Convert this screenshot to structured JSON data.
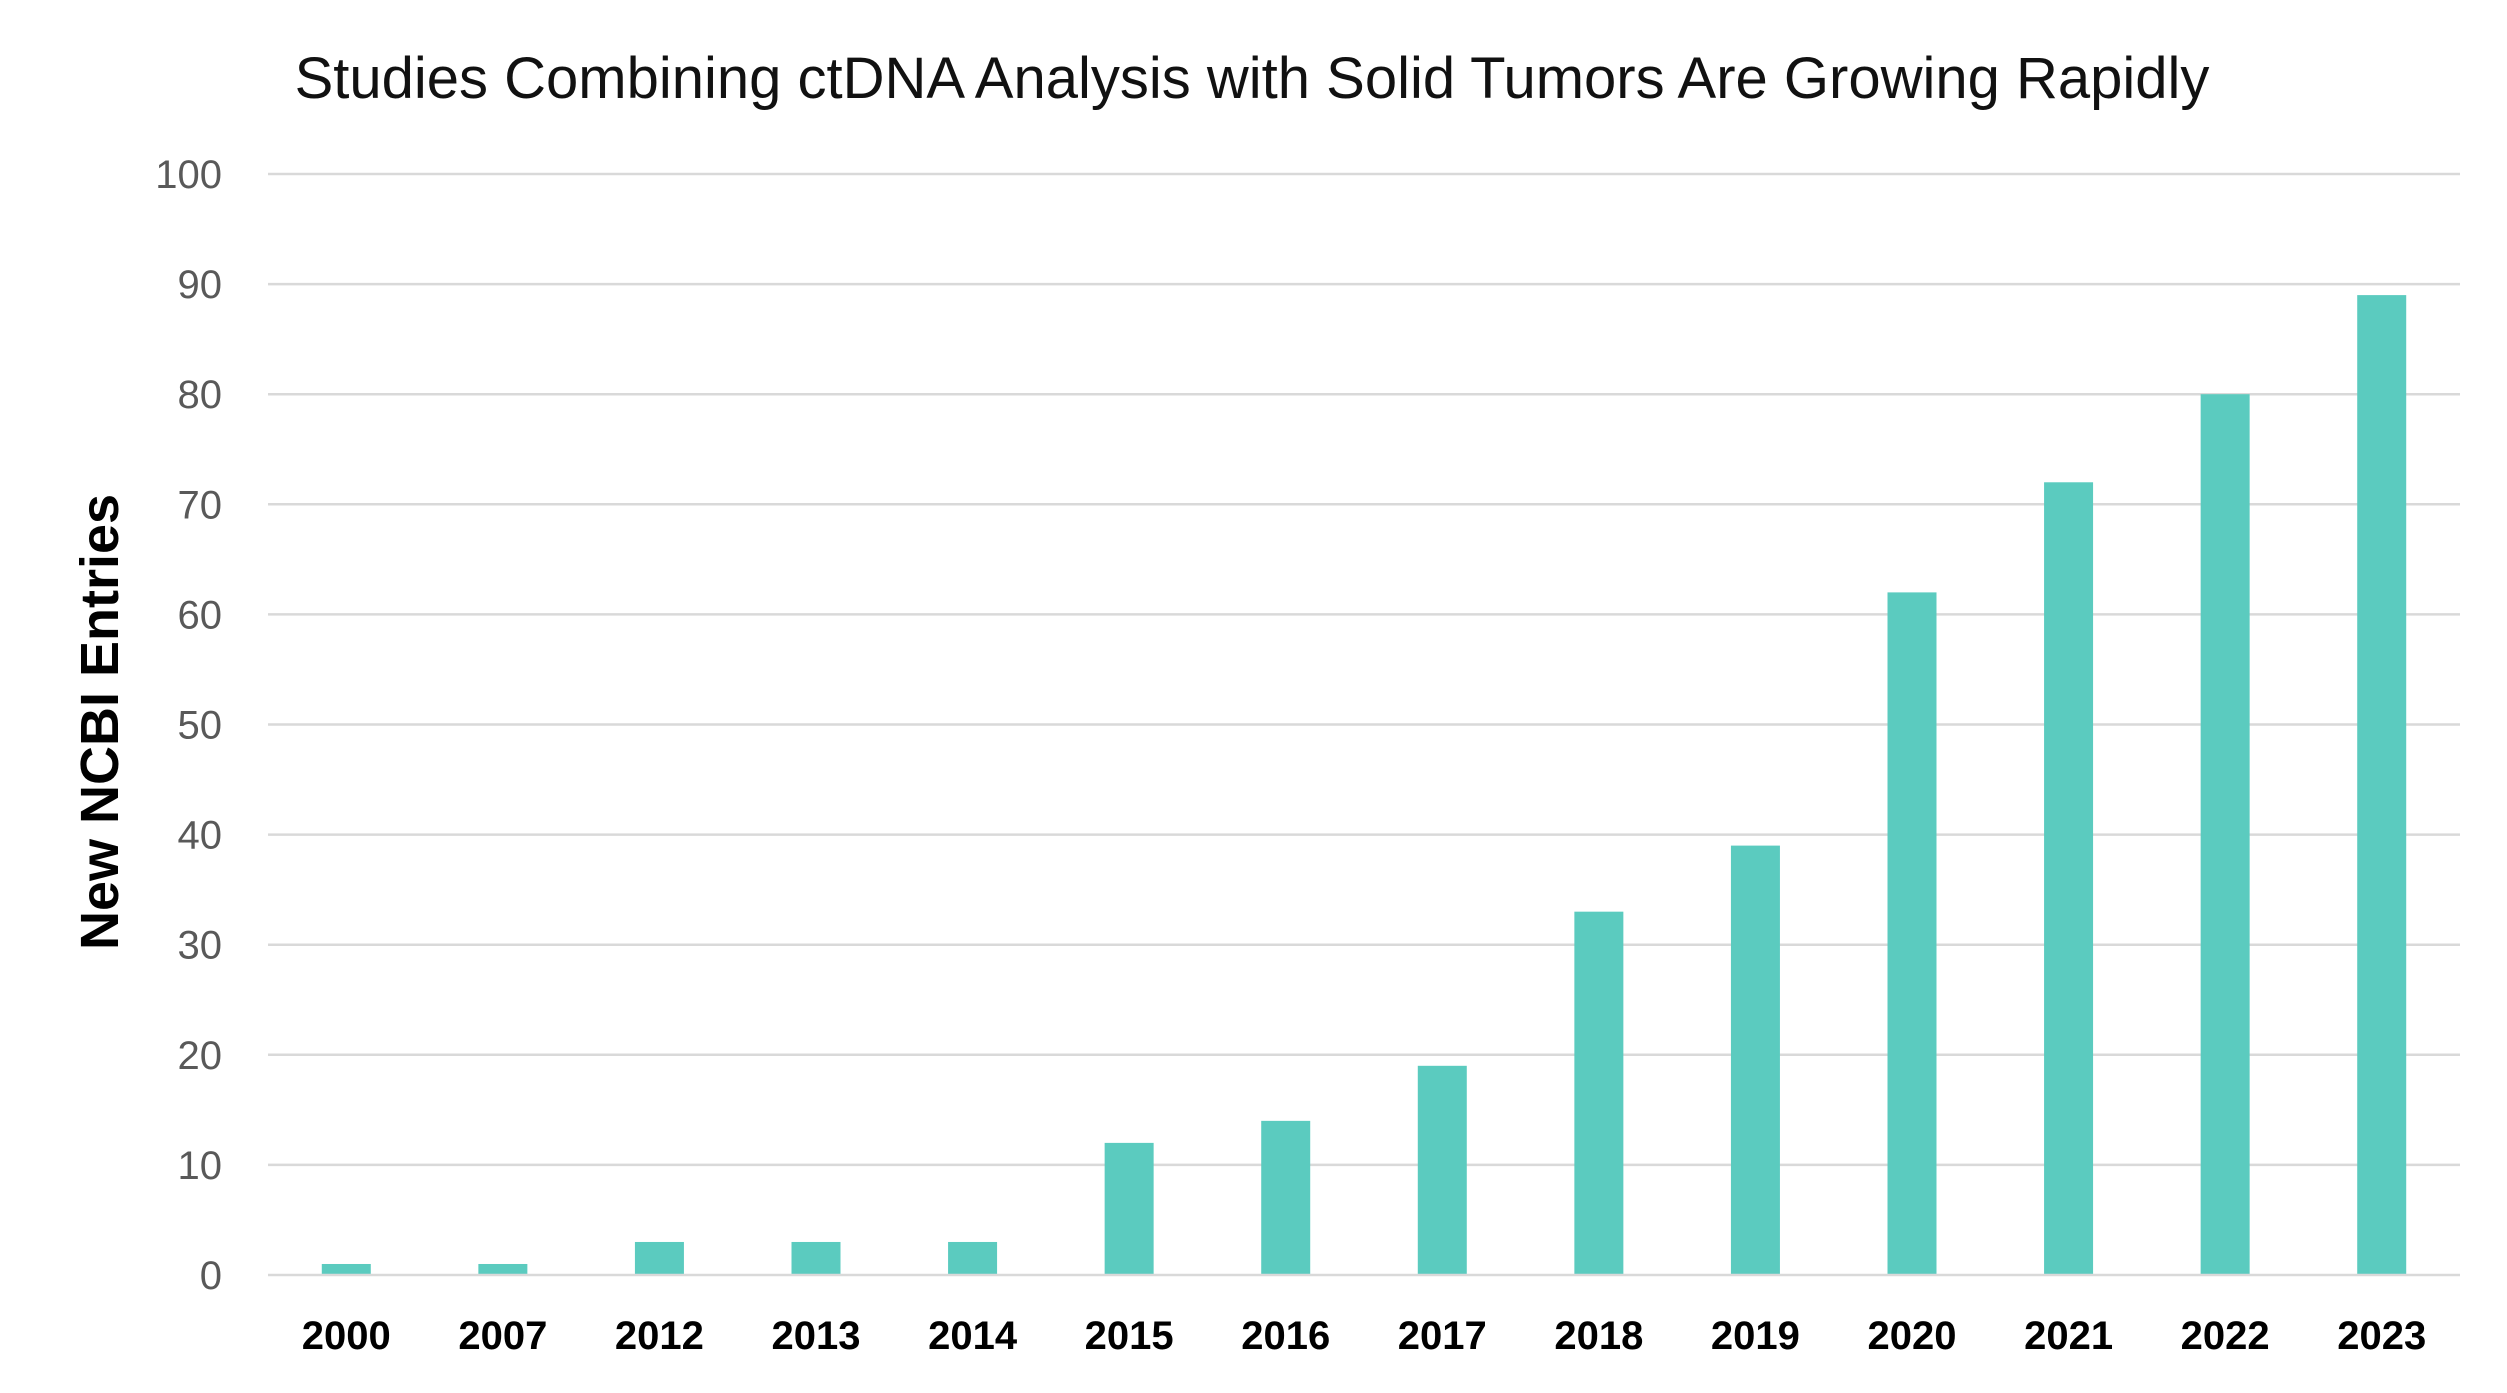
{
  "chart_data": {
    "type": "bar",
    "title": "Studies Combining ctDNA Analysis with Solid Tumors Are Growing Rapidly",
    "xlabel": "",
    "ylabel": "New NCBI Entries",
    "categories": [
      "2000",
      "2007",
      "2012",
      "2013",
      "2014",
      "2015",
      "2016",
      "2017",
      "2018",
      "2019",
      "2020",
      "2021",
      "2022",
      "2023"
    ],
    "values": [
      1,
      1,
      3,
      3,
      3,
      12,
      14,
      19,
      33,
      39,
      62,
      72,
      80,
      89
    ],
    "ylim": [
      0,
      100
    ],
    "yticks": [
      0,
      10,
      20,
      30,
      40,
      50,
      60,
      70,
      80,
      90,
      100
    ],
    "grid": true,
    "legend": "none",
    "bar_color": "#5bcbbf"
  }
}
